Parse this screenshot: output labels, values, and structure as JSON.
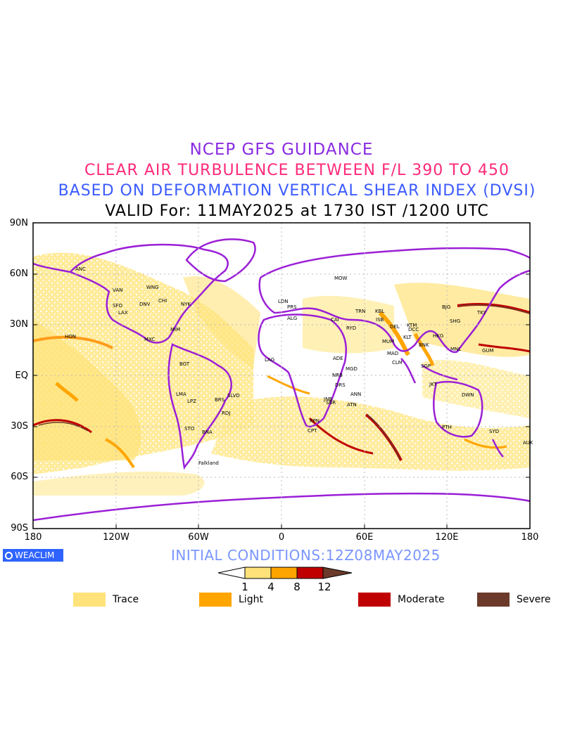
{
  "titles": {
    "line1": "NCEP GFS GUIDANCE",
    "line2": "CLEAR AIR TURBULENCE BETWEEN F/L 390 TO 450",
    "line3": "BASED ON DEFORMATION VERTICAL SHEAR INDEX (DVSI)",
    "line4": "VALID For: 11MAY2025 at 1730 IST /1200 UTC"
  },
  "lat_labels": [
    "90N",
    "60N",
    "30N",
    "EQ",
    "30S",
    "60S",
    "90S"
  ],
  "lon_labels": [
    "180",
    "120W",
    "60W",
    "0",
    "60E",
    "120E",
    "180"
  ],
  "logo": "WEACLIM",
  "initial_conditions": "INITIAL CONDITIONS:12Z08MAY2025",
  "colorbar": {
    "ticks": [
      "1",
      "4",
      "8",
      "12"
    ],
    "colors": [
      "#ffe37a",
      "#ffa500",
      "#c00000",
      "#6b3a2a"
    ]
  },
  "legend": [
    {
      "label": "Trace",
      "color": "#ffe37a"
    },
    {
      "label": "Light",
      "color": "#ffa500"
    },
    {
      "label": "Moderate",
      "color": "#c00000"
    },
    {
      "label": "Severe",
      "color": "#6b3a2a"
    }
  ],
  "stations": [
    "ANC",
    "VAN",
    "WNG",
    "SFO",
    "LAX",
    "DNV",
    "CHI",
    "NYK",
    "MIM",
    "MXC",
    "HON",
    "BGT",
    "LMA",
    "LPZ",
    "BRS",
    "SLVD",
    "RDJ",
    "STO",
    "BNA",
    "Falkland",
    "LDN",
    "PRS",
    "MOW",
    "ALG",
    "CAI",
    "RYD",
    "TRN",
    "KBL",
    "ISB",
    "DEL",
    "KTM",
    "MUM",
    "KLT",
    "DCC",
    "MAD",
    "CLM",
    "BNK",
    "HKG",
    "BJG",
    "SHG",
    "TKY",
    "MNL",
    "GUM",
    "SGP",
    "JKT",
    "DWN",
    "PTH",
    "SYD",
    "AUK",
    "NRB",
    "DRS",
    "ANN",
    "ATN",
    "LAG",
    "ADE",
    "MGD",
    "SBR",
    "KPN",
    "CPT",
    "JNB"
  ]
}
